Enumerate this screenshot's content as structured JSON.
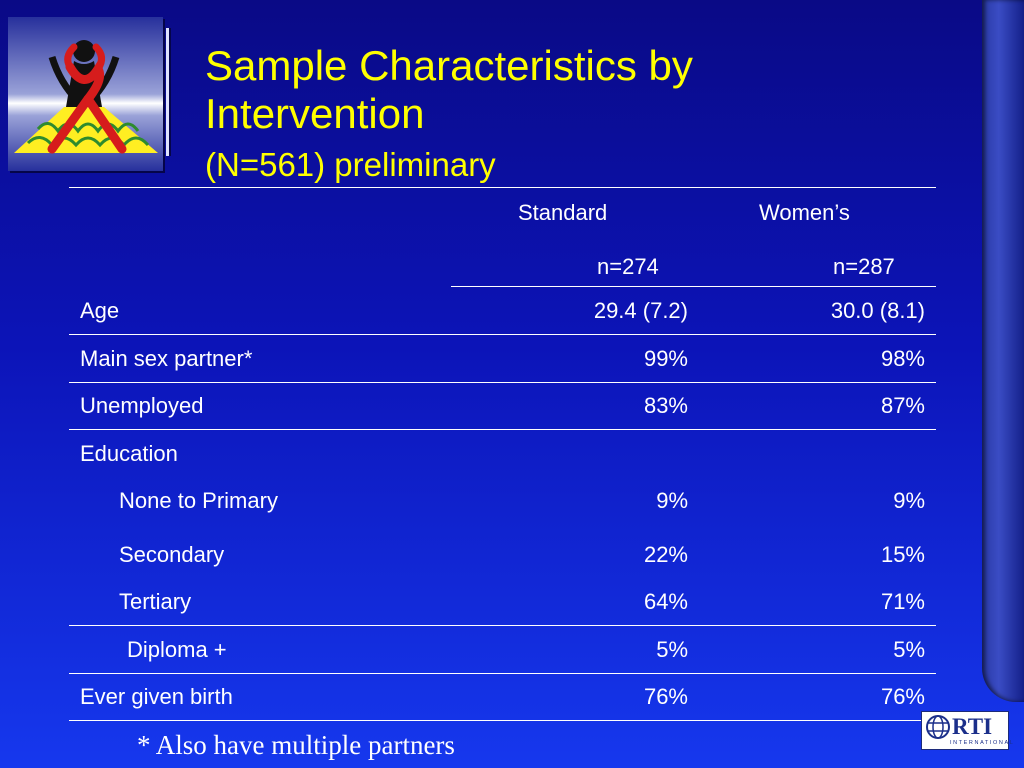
{
  "slide": {
    "title_main": "Sample Characteristics by Intervention",
    "title_suffix": "(N=561) preliminary",
    "footnote": "* Also have multiple partners",
    "logo_label": "RTI",
    "logo_sub": "INTERNATIONAL",
    "title_color": "#ffff00",
    "background_color": "#0c14b8"
  },
  "table": {
    "headers": [
      {
        "name": "Standard",
        "n": "n=274"
      },
      {
        "name": "Women’s",
        "n": "n=287"
      }
    ],
    "rows": [
      {
        "label": "Age",
        "standard": "29.4 (7.2)",
        "womens": "30.0 (8.1)"
      },
      {
        "label": "Main sex partner*",
        "standard": "99%",
        "womens": "98%"
      },
      {
        "label": "Unemployed",
        "standard": "83%",
        "womens": "87%"
      },
      {
        "label": "Education",
        "standard": "",
        "womens": ""
      },
      {
        "label": "None to Primary",
        "standard": "9%",
        "womens": "9%"
      },
      {
        "label": "Secondary",
        "standard": "22%",
        "womens": "15%"
      },
      {
        "label": "Tertiary",
        "standard": "64%",
        "womens": "71%"
      },
      {
        "label": "Diploma +",
        "standard": "5%",
        "womens": "5%"
      },
      {
        "label": "Ever given birth",
        "standard": "76%",
        "womens": "76%"
      }
    ]
  }
}
